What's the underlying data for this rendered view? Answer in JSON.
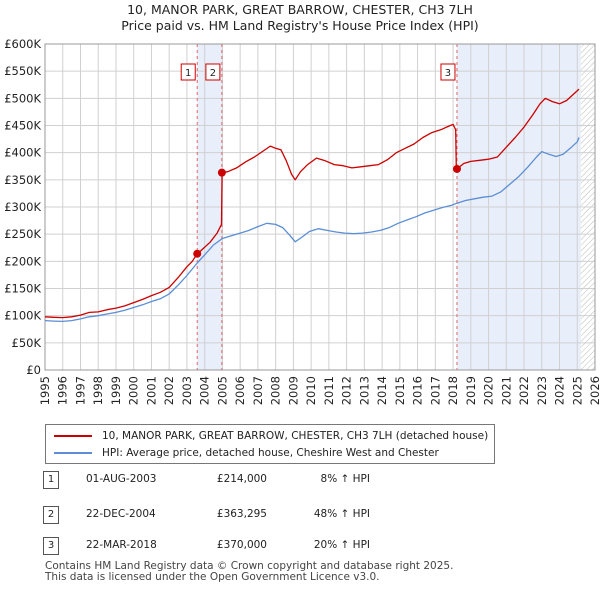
{
  "title": {
    "line1": "10, MANOR PARK, GREAT BARROW, CHESTER, CH3 7LH",
    "line2": "Price paid vs. HM Land Registry's House Price Index (HPI)"
  },
  "colors": {
    "property": "#cc0000",
    "hpi": "#5b8ed6",
    "shade": "#e8eefa",
    "grid": "#d0d0d0",
    "vline": "#e06666"
  },
  "chart_data": {
    "type": "line",
    "x_range": [
      1995,
      2026
    ],
    "y_range": [
      0,
      600000
    ],
    "y_ticks": [
      {
        "value": 0,
        "label": "£0"
      },
      {
        "value": 50000,
        "label": "£50K"
      },
      {
        "value": 100000,
        "label": "£100K"
      },
      {
        "value": 150000,
        "label": "£150K"
      },
      {
        "value": 200000,
        "label": "£200K"
      },
      {
        "value": 250000,
        "label": "£250K"
      },
      {
        "value": 300000,
        "label": "£300K"
      },
      {
        "value": 350000,
        "label": "£350K"
      },
      {
        "value": 400000,
        "label": "£400K"
      },
      {
        "value": 450000,
        "label": "£450K"
      },
      {
        "value": 500000,
        "label": "£500K"
      },
      {
        "value": 550000,
        "label": "£550K"
      },
      {
        "value": 600000,
        "label": "£600K"
      }
    ],
    "x_ticks": [
      "1995",
      "1996",
      "1997",
      "1998",
      "1999",
      "2000",
      "2001",
      "2002",
      "2003",
      "2004",
      "2005",
      "2006",
      "2007",
      "2008",
      "2009",
      "2010",
      "2011",
      "2012",
      "2013",
      "2014",
      "2015",
      "2016",
      "2017",
      "2018",
      "2019",
      "2020",
      "2021",
      "2022",
      "2023",
      "2024",
      "2025",
      "2026"
    ],
    "shaded_periods": [
      [
        2003.58,
        2004.97
      ],
      [
        2018.22,
        2025.2
      ]
    ],
    "hatched_after": 2025.2,
    "series": [
      {
        "name": "10, MANOR PARK, GREAT BARROW, CHESTER, CH3 7LH (detached house)",
        "color": "#cc0000",
        "points": [
          [
            1995.0,
            98000
          ],
          [
            1995.5,
            97000
          ],
          [
            1996.0,
            96500
          ],
          [
            1996.5,
            98000
          ],
          [
            1997.0,
            101000
          ],
          [
            1997.5,
            106000
          ],
          [
            1998.0,
            107000
          ],
          [
            1998.5,
            111000
          ],
          [
            1999.0,
            114000
          ],
          [
            1999.5,
            118000
          ],
          [
            2000.0,
            124000
          ],
          [
            2000.5,
            130000
          ],
          [
            2001.0,
            137000
          ],
          [
            2001.5,
            143000
          ],
          [
            2002.0,
            152000
          ],
          [
            2002.5,
            170000
          ],
          [
            2003.0,
            190000
          ],
          [
            2003.3,
            200000
          ],
          [
            2003.58,
            214000
          ],
          [
            2003.8,
            220000
          ],
          [
            2004.3,
            235000
          ],
          [
            2004.7,
            252000
          ],
          [
            2004.95,
            268000
          ],
          [
            2004.98,
            363295
          ],
          [
            2005.3,
            365000
          ],
          [
            2005.8,
            372000
          ],
          [
            2006.3,
            383000
          ],
          [
            2006.8,
            392000
          ],
          [
            2007.3,
            403000
          ],
          [
            2007.7,
            412000
          ],
          [
            2008.0,
            408000
          ],
          [
            2008.3,
            405000
          ],
          [
            2008.6,
            385000
          ],
          [
            2008.9,
            360000
          ],
          [
            2009.1,
            350000
          ],
          [
            2009.4,
            365000
          ],
          [
            2009.8,
            378000
          ],
          [
            2010.3,
            390000
          ],
          [
            2010.8,
            385000
          ],
          [
            2011.3,
            378000
          ],
          [
            2011.8,
            376000
          ],
          [
            2012.3,
            372000
          ],
          [
            2012.8,
            374000
          ],
          [
            2013.3,
            376000
          ],
          [
            2013.8,
            378000
          ],
          [
            2014.3,
            387000
          ],
          [
            2014.8,
            400000
          ],
          [
            2015.3,
            408000
          ],
          [
            2015.8,
            416000
          ],
          [
            2016.3,
            428000
          ],
          [
            2016.8,
            437000
          ],
          [
            2017.3,
            442000
          ],
          [
            2017.7,
            448000
          ],
          [
            2018.0,
            452000
          ],
          [
            2018.15,
            442000
          ],
          [
            2018.18,
            370000
          ],
          [
            2018.22,
            370000
          ],
          [
            2018.6,
            380000
          ],
          [
            2019.0,
            384000
          ],
          [
            2019.5,
            386000
          ],
          [
            2020.0,
            388000
          ],
          [
            2020.5,
            392000
          ],
          [
            2021.0,
            410000
          ],
          [
            2021.5,
            428000
          ],
          [
            2022.0,
            447000
          ],
          [
            2022.5,
            470000
          ],
          [
            2022.9,
            490000
          ],
          [
            2023.2,
            500000
          ],
          [
            2023.6,
            494000
          ],
          [
            2024.0,
            490000
          ],
          [
            2024.4,
            496000
          ],
          [
            2024.8,
            508000
          ],
          [
            2025.1,
            517000
          ]
        ]
      },
      {
        "name": "HPI: Average price, detached house, Cheshire West and Chester",
        "color": "#5b8ed6",
        "points": [
          [
            1995.0,
            91000
          ],
          [
            1995.5,
            90000
          ],
          [
            1996.0,
            89500
          ],
          [
            1996.5,
            91000
          ],
          [
            1997.0,
            94000
          ],
          [
            1997.5,
            98000
          ],
          [
            1998.0,
            100000
          ],
          [
            1998.5,
            103000
          ],
          [
            1999.0,
            106000
          ],
          [
            1999.5,
            110000
          ],
          [
            2000.0,
            115000
          ],
          [
            2000.5,
            120000
          ],
          [
            2001.0,
            126000
          ],
          [
            2001.5,
            131000
          ],
          [
            2002.0,
            140000
          ],
          [
            2002.5,
            156000
          ],
          [
            2003.0,
            174000
          ],
          [
            2003.58,
            197000
          ],
          [
            2004.0,
            212000
          ],
          [
            2004.5,
            230000
          ],
          [
            2005.0,
            242000
          ],
          [
            2005.5,
            247000
          ],
          [
            2006.0,
            252000
          ],
          [
            2006.5,
            257000
          ],
          [
            2007.0,
            264000
          ],
          [
            2007.5,
            270000
          ],
          [
            2008.0,
            268000
          ],
          [
            2008.4,
            262000
          ],
          [
            2008.8,
            248000
          ],
          [
            2009.1,
            236000
          ],
          [
            2009.5,
            245000
          ],
          [
            2009.9,
            255000
          ],
          [
            2010.4,
            260000
          ],
          [
            2010.9,
            257000
          ],
          [
            2011.4,
            254000
          ],
          [
            2011.9,
            252000
          ],
          [
            2012.4,
            251000
          ],
          [
            2012.9,
            252000
          ],
          [
            2013.4,
            254000
          ],
          [
            2013.9,
            257000
          ],
          [
            2014.4,
            262000
          ],
          [
            2014.9,
            270000
          ],
          [
            2015.4,
            276000
          ],
          [
            2015.9,
            282000
          ],
          [
            2016.4,
            289000
          ],
          [
            2016.9,
            294000
          ],
          [
            2017.4,
            299000
          ],
          [
            2017.9,
            303000
          ],
          [
            2018.22,
            307000
          ],
          [
            2018.7,
            312000
          ],
          [
            2019.2,
            315000
          ],
          [
            2019.7,
            318000
          ],
          [
            2020.2,
            320000
          ],
          [
            2020.7,
            328000
          ],
          [
            2021.2,
            342000
          ],
          [
            2021.7,
            356000
          ],
          [
            2022.2,
            373000
          ],
          [
            2022.7,
            392000
          ],
          [
            2023.0,
            402000
          ],
          [
            2023.4,
            397000
          ],
          [
            2023.8,
            393000
          ],
          [
            2024.2,
            397000
          ],
          [
            2024.6,
            408000
          ],
          [
            2025.0,
            420000
          ],
          [
            2025.1,
            428000
          ]
        ]
      }
    ],
    "markers": [
      {
        "id": "1",
        "x": 2003.58,
        "y": 214000
      },
      {
        "id": "2",
        "x": 2004.97,
        "y": 363295
      },
      {
        "id": "3",
        "x": 2018.22,
        "y": 370000
      }
    ]
  },
  "legend": {
    "property": "10, MANOR PARK, GREAT BARROW, CHESTER, CH3 7LH (detached house)",
    "hpi": "HPI: Average price, detached house, Cheshire West and Chester"
  },
  "sales": [
    {
      "id": "1",
      "date": "01-AUG-2003",
      "price": "£214,000",
      "hpi": "8% ↑ HPI"
    },
    {
      "id": "2",
      "date": "22-DEC-2004",
      "price": "£363,295",
      "hpi": "48% ↑ HPI"
    },
    {
      "id": "3",
      "date": "22-MAR-2018",
      "price": "£370,000",
      "hpi": "20% ↑ HPI"
    }
  ],
  "footer": {
    "line1": "Contains HM Land Registry data © Crown copyright and database right 2025.",
    "line2": "This data is licensed under the Open Government Licence v3.0."
  }
}
